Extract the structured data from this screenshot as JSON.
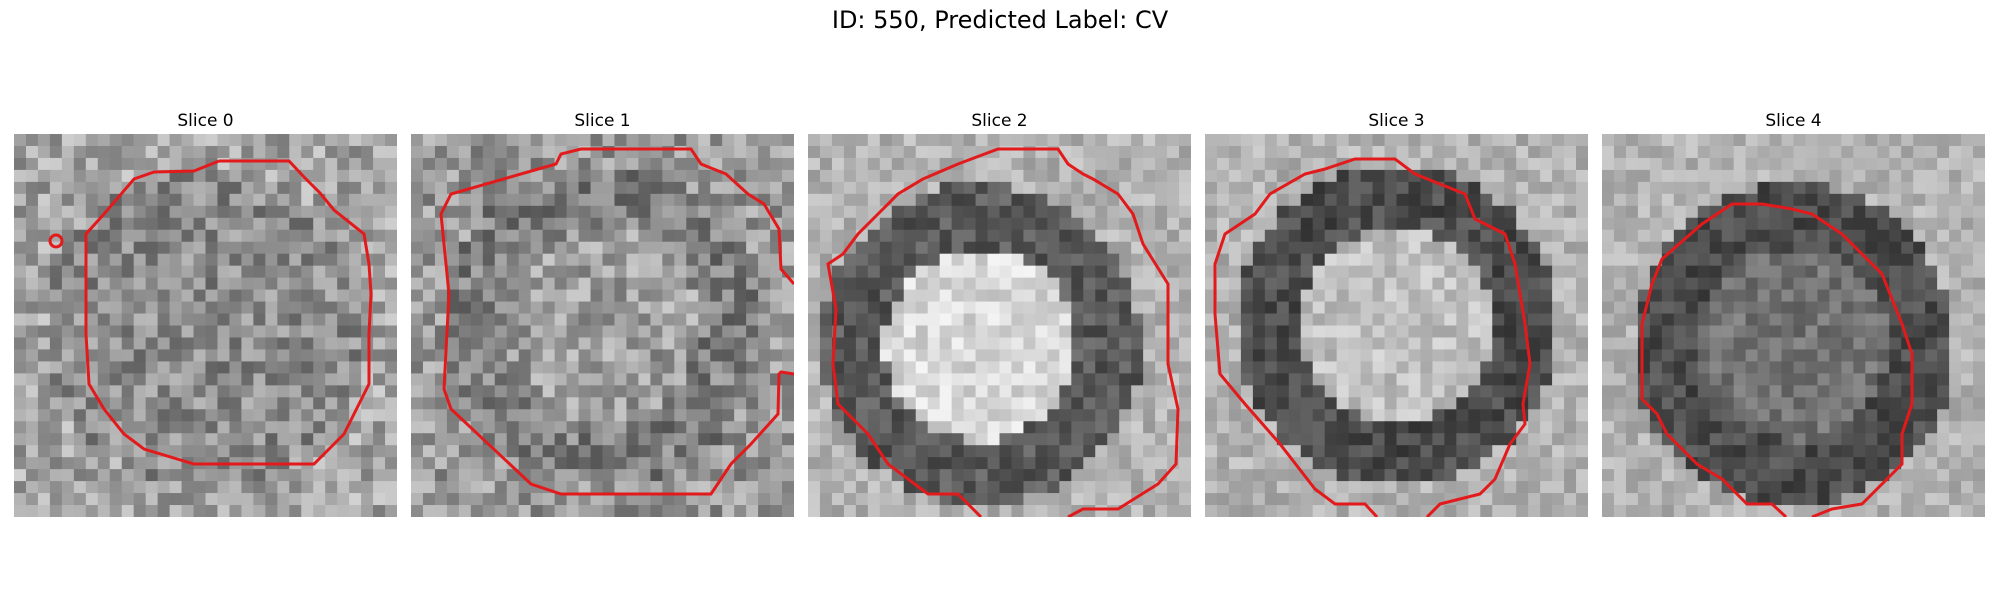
{
  "figure": {
    "title": "ID: 550, Predicted Label: CV"
  },
  "panels": [
    {
      "title": "Slice 0",
      "contour_color": "#e31a1c"
    },
    {
      "title": "Slice 1",
      "contour_color": "#e31a1c"
    },
    {
      "title": "Slice 2",
      "contour_color": "#e31a1c"
    },
    {
      "title": "Slice 3",
      "contour_color": "#e31a1c"
    },
    {
      "title": "Slice 4",
      "contour_color": "#e31a1c"
    }
  ]
}
